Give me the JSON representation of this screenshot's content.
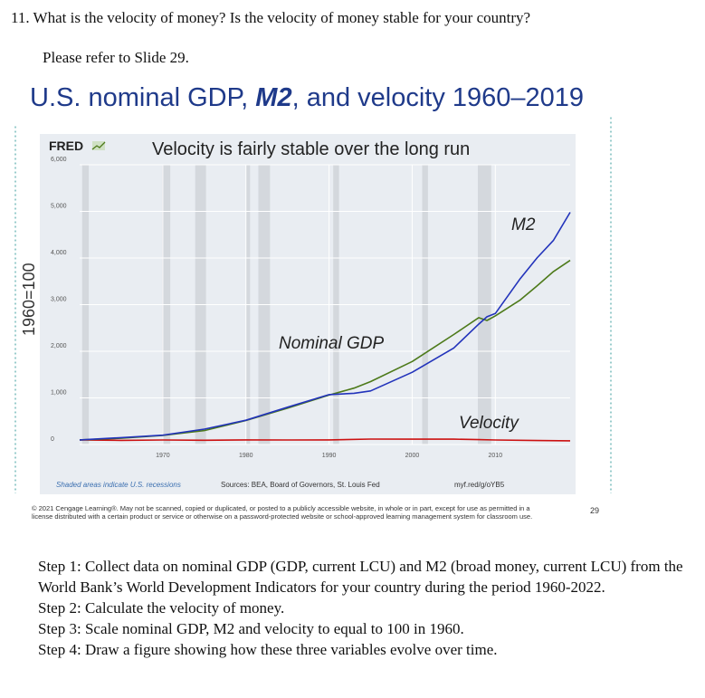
{
  "question": "11. What is the velocity of money? Is the velocity of money stable for your country?",
  "reference": "Please refer to Slide 29.",
  "slide": {
    "title_part1": "U.S. nominal GDP, ",
    "title_em": "M2",
    "title_part2": ", and velocity 1960–2019",
    "side_label": "1960=100",
    "copyright_line1": "© 2021 Cengage Learning®. May not be scanned, copied or duplicated, or posted to a publicly accessible website, in whole or in part, except for use as permitted in a",
    "copyright_line2": "license distributed with a certain product or service or otherwise on a password-protected website or school-approved learning management system for classroom use.",
    "page_number": "29"
  },
  "chart_data": {
    "type": "line",
    "brand": "FRED",
    "title": "Velocity is fairly stable over the long run",
    "x_ticks": [
      1970,
      1980,
      1990,
      2000,
      2010
    ],
    "xlim": [
      1960,
      2019
    ],
    "y_ticks": [
      "0",
      "1,000",
      "2,000",
      "3,000",
      "4,000",
      "5,000",
      "6,000"
    ],
    "ylim": [
      0,
      6000
    ],
    "recessions": [
      [
        1960.3,
        1961.1
      ],
      [
        1969.9,
        1970.9
      ],
      [
        1973.9,
        1975.2
      ],
      [
        1980.0,
        1980.5
      ],
      [
        1981.5,
        1982.9
      ],
      [
        1990.5,
        1991.2
      ],
      [
        2001.2,
        2001.9
      ],
      [
        2007.9,
        2009.5
      ]
    ],
    "series": [
      {
        "name": "Nominal GDP",
        "color": "#4d7a1a",
        "x": [
          1960,
          1965,
          1970,
          1975,
          1980,
          1985,
          1990,
          1993,
          1995,
          2000,
          2005,
          2008,
          2009,
          2010,
          2013,
          2015,
          2017,
          2019
        ],
        "y": [
          100,
          134,
          195,
          300,
          515,
          780,
          1060,
          1210,
          1350,
          1780,
          2360,
          2720,
          2660,
          2760,
          3100,
          3400,
          3710,
          3950
        ]
      },
      {
        "name": "M2",
        "color": "#2233bb",
        "x": [
          1960,
          1965,
          1970,
          1975,
          1980,
          1985,
          1990,
          1993,
          1995,
          2000,
          2005,
          2008,
          2009,
          2010,
          2013,
          2015,
          2017,
          2019
        ],
        "y": [
          100,
          148,
          200,
          330,
          520,
          800,
          1070,
          1100,
          1150,
          1550,
          2070,
          2580,
          2740,
          2810,
          3560,
          4000,
          4380,
          4980
        ]
      },
      {
        "name": "Velocity",
        "color": "#cc1111",
        "x": [
          1960,
          1965,
          1970,
          1975,
          1980,
          1985,
          1990,
          1995,
          2000,
          2005,
          2008,
          2010,
          2015,
          2019
        ],
        "y": [
          100,
          90,
          98,
          91,
          99,
          97,
          99,
          117,
          115,
          114,
          105,
          98,
          85,
          79
        ]
      }
    ],
    "annotations": {
      "m2": "M2",
      "gdp": "Nominal GDP",
      "velocity": "Velocity"
    },
    "footer_left": "Shaded areas indicate U.S. recessions",
    "footer_mid": "Sources: BEA, Board of Governors, St. Louis Fed",
    "footer_right": "myf.red/g/oYB5"
  },
  "steps": [
    "Step 1: Collect data on nominal GDP (GDP, current LCU) and M2 (broad money, current LCU) from the World Bank’s World Development Indicators for your country during the period 1960-2022.",
    "Step 2: Calculate the velocity of money.",
    "Step 3: Scale nominal GDP, M2 and velocity to equal to 100 in 1960.",
    "Step 4: Draw a figure showing how these three variables evolve over time."
  ]
}
